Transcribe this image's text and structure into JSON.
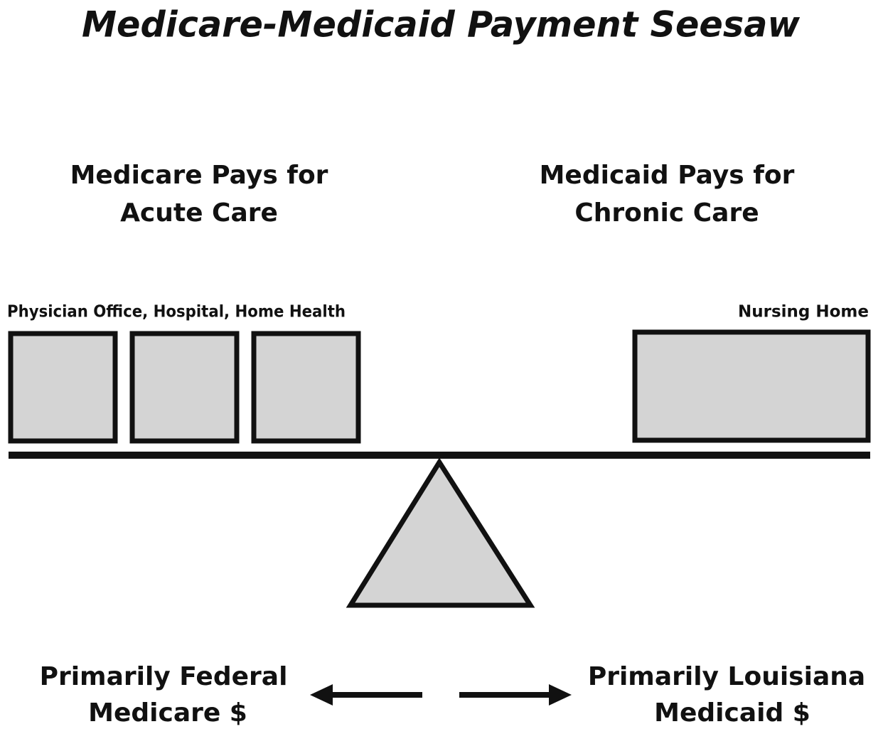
{
  "title": "Medicare-Medicaid Payment Seesaw",
  "left": {
    "heading": [
      "Medicare Pays for",
      "Acute Care"
    ],
    "label": "Physician Office, Hospital, Home Health",
    "footer": [
      "Primarily Federal",
      "Medicare $"
    ]
  },
  "right": {
    "heading": [
      "Medicaid Pays for",
      "Chronic Care"
    ],
    "label": "Nursing Home",
    "footer": [
      "Primarily Louisiana",
      "Medicaid $"
    ]
  }
}
